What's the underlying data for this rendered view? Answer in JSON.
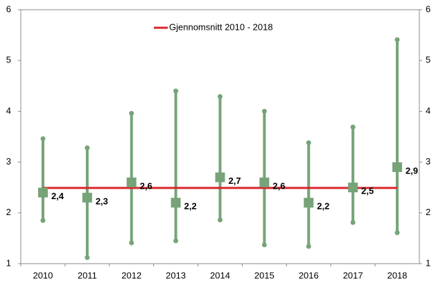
{
  "chart_data": {
    "type": "range",
    "categories": [
      "2010",
      "2011",
      "2012",
      "2013",
      "2014",
      "2015",
      "2016",
      "2017",
      "2018"
    ],
    "values": [
      2.4,
      2.3,
      2.6,
      2.2,
      2.7,
      2.6,
      2.2,
      2.5,
      2.9
    ],
    "value_labels": [
      "2,4",
      "2,3",
      "2,6",
      "2,2",
      "2,7",
      "2,6",
      "2,2",
      "2,5",
      "2,9"
    ],
    "max": [
      3.46,
      3.28,
      3.96,
      4.4,
      4.29,
      4.0,
      3.38,
      3.69,
      5.41
    ],
    "min": [
      1.85,
      1.12,
      1.41,
      1.45,
      1.86,
      1.37,
      1.34,
      1.81,
      1.61
    ],
    "color": "#76a378",
    "reference_line": {
      "name": "Gjennomsnitt 2010 - 2018",
      "value": 2.49,
      "color": "#d9262b"
    },
    "ylim": [
      1,
      6
    ],
    "yticks": [
      1,
      2,
      3,
      4,
      5,
      6
    ],
    "y2lim": [
      1,
      6
    ],
    "y2ticks": [
      1,
      2,
      3,
      4,
      5,
      6
    ],
    "legend": "top"
  }
}
